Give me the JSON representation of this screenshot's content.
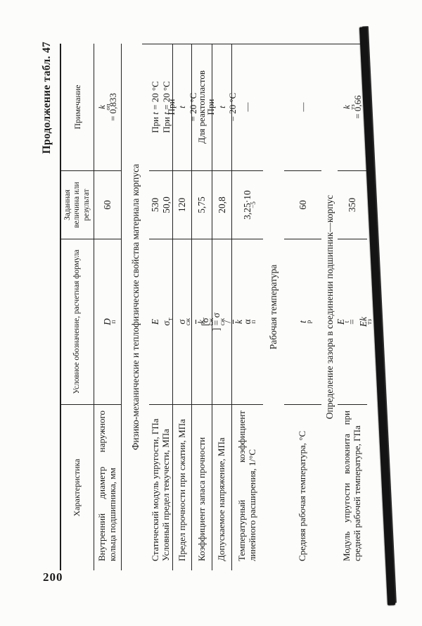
{
  "page": {
    "number": "200",
    "continuation": "Продолжение табл. 47"
  },
  "table": {
    "headers": {
      "characteristic": "Характеристика",
      "symbol": "Условное обозначение, расчетная формула",
      "value": "Заданная величина или результат",
      "note": "Примечание"
    },
    "sections": {
      "s1": "Физико-механические и теплофизические свойства материала корпуса",
      "s2": "Рабочая температура",
      "s3": "Определение зазора в соединении подшипник—корпус"
    },
    "rows": [
      {
        "label": "Внутренний диаметр наружного кольца подшипника, мм",
        "symbol": "*D*_{п}",
        "value": "60",
        "note": "*k*_{оп} = 0,833"
      },
      {
        "label": "Статический модуль упругости, ГПа",
        "label2": "Условный предел текучести, МПа",
        "symbol": "*E*",
        "symbol2": "σ_{т}",
        "value": "530",
        "value2": "50,0",
        "note": "При *t* = 20 °С",
        "note2": "При *t* = 20 °С"
      },
      {
        "label": "Предел прочности при сжатии, МПа",
        "symbol": "σ_{сж}",
        "value": "120",
        "note": "При *t* = 20 °С"
      },
      {
        "label": "Коэффициент запаса прочности",
        "symbol": "*‾{k}*",
        "value": "5,75",
        "note": "Для реактопластов"
      },
      {
        "label": "Допускаемое напряжение, МПа",
        "symbol": "[σ_{сж}] = σ_{сж}/*‾{k}*",
        "value": "20,8",
        "note": "При *t* = 20 °С"
      },
      {
        "label": "Температурный коэффициент линейного расширения, 1/°С",
        "symbol": "α_{п}",
        "value": "3,25·10^{−5}",
        "note": "—"
      },
      {
        "label": "Средняя рабочая температура, °С",
        "symbol": "*t*_{р}",
        "value": "60",
        "note": "—"
      },
      {
        "label": "Модуль упругости волокнита при средней рабочей температуре, ГПа",
        "symbol": "*E*_{t} = *Ek*_{тз}",
        "value": "350",
        "note": "*k*_{тз} = 0,66"
      }
    ]
  }
}
